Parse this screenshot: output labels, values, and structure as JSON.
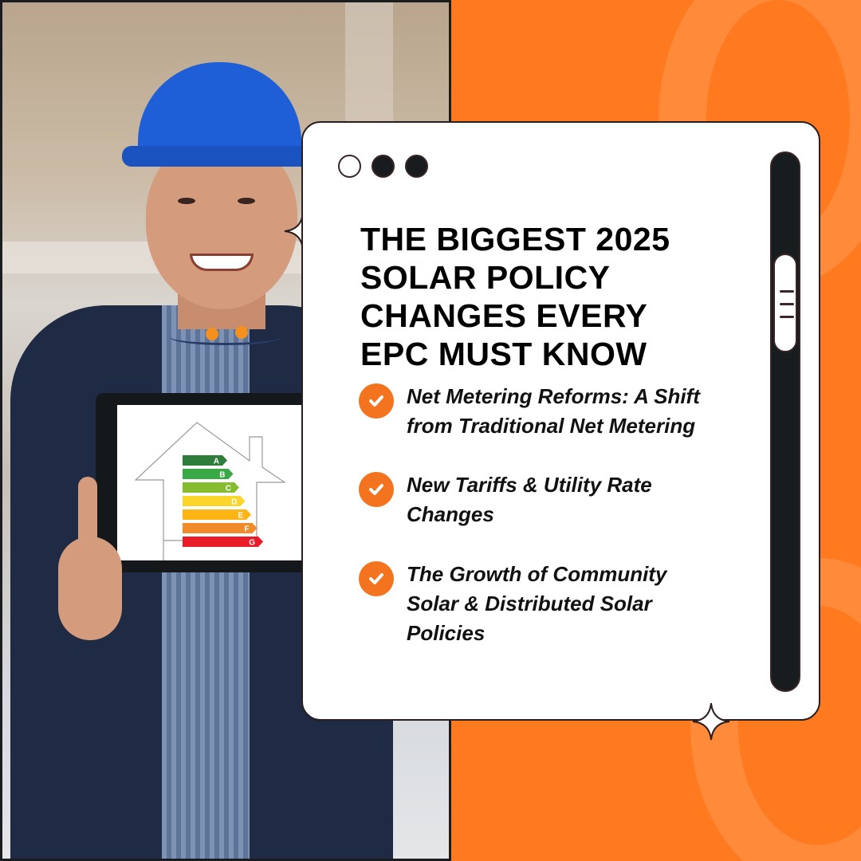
{
  "window": {
    "controls": [
      "minimize",
      "maximize",
      "close"
    ]
  },
  "title_lines": [
    "THE BIGGEST 2025",
    "SOLAR POLICY",
    "CHANGES EVERY",
    "EPC MUST KNOW"
  ],
  "items": [
    {
      "lines": [
        "Net Metering Reforms: A Shift",
        "from Traditional Net Metering"
      ]
    },
    {
      "lines": [
        "New Tariffs & Utility Rate",
        "Changes"
      ]
    },
    {
      "lines": [
        "The Growth of Community",
        "Solar & Distributed Solar",
        "Policies"
      ]
    }
  ],
  "energy_labels": [
    "A",
    "B",
    "C",
    "D",
    "E",
    "F",
    "G"
  ],
  "colors": {
    "accent": "#f4731f",
    "background": "#ff7a1f",
    "dark": "#171c1e",
    "helmet": "#1e5fd8",
    "energy": [
      "#2e7d3a",
      "#3aa845",
      "#86bc2f",
      "#fcd52a",
      "#fdb515",
      "#f08a2a",
      "#ea1c2a"
    ]
  },
  "icons": {
    "bullet": "check-circle-icon",
    "decoration": "sparkle-icon"
  }
}
